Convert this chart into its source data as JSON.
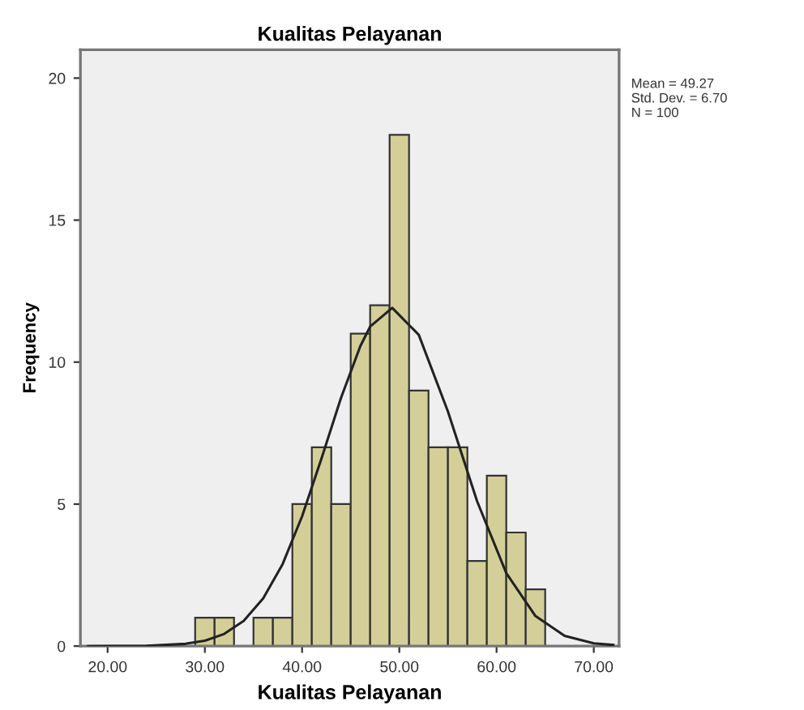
{
  "chart_data": {
    "type": "histogram",
    "title": "Kualitas Pelayanan",
    "xlabel": "Kualitas Pelayanan",
    "ylabel": "Frequency",
    "bins": [
      29,
      31,
      33,
      35,
      37,
      39,
      41,
      43,
      45,
      47,
      49,
      51,
      53,
      55,
      57,
      59,
      61,
      63,
      65
    ],
    "values": [
      1,
      1,
      0,
      1,
      1,
      5,
      7,
      5,
      11,
      12,
      18,
      9,
      7,
      7,
      3,
      6,
      4,
      2
    ],
    "color": "#d4cf98",
    "series": [
      {
        "type": "line",
        "color": "#222222",
        "x": [
          18,
          24,
          28,
          30,
          32,
          34,
          36,
          38,
          40,
          42,
          44,
          46,
          47,
          49.27,
          52,
          55,
          58,
          61,
          64,
          67,
          70,
          72
        ],
        "values": [
          0,
          0.01,
          0.08,
          0.19,
          0.43,
          0.89,
          1.68,
          2.89,
          4.57,
          6.61,
          8.74,
          10.57,
          11.25,
          11.91,
          10.96,
          8.26,
          5.1,
          2.57,
          1.06,
          0.36,
          0.1,
          0.04
        ]
      }
    ],
    "xlim": [
      17.2,
      72.6
    ],
    "ylim": [
      0,
      21
    ],
    "xticks": [
      {
        "value": 20,
        "label": "20.00"
      },
      {
        "value": 30,
        "label": "30.00"
      },
      {
        "value": 40,
        "label": "40.00"
      },
      {
        "value": 50,
        "label": "50.00"
      },
      {
        "value": 60,
        "label": "60.00"
      },
      {
        "value": 70,
        "label": "70.00"
      }
    ],
    "yticks": [
      0,
      5,
      10,
      15,
      20
    ],
    "grid": false,
    "annotations": [
      "Mean = 49.27\nStd. Dev. = 6.70\nN = 100"
    ]
  }
}
